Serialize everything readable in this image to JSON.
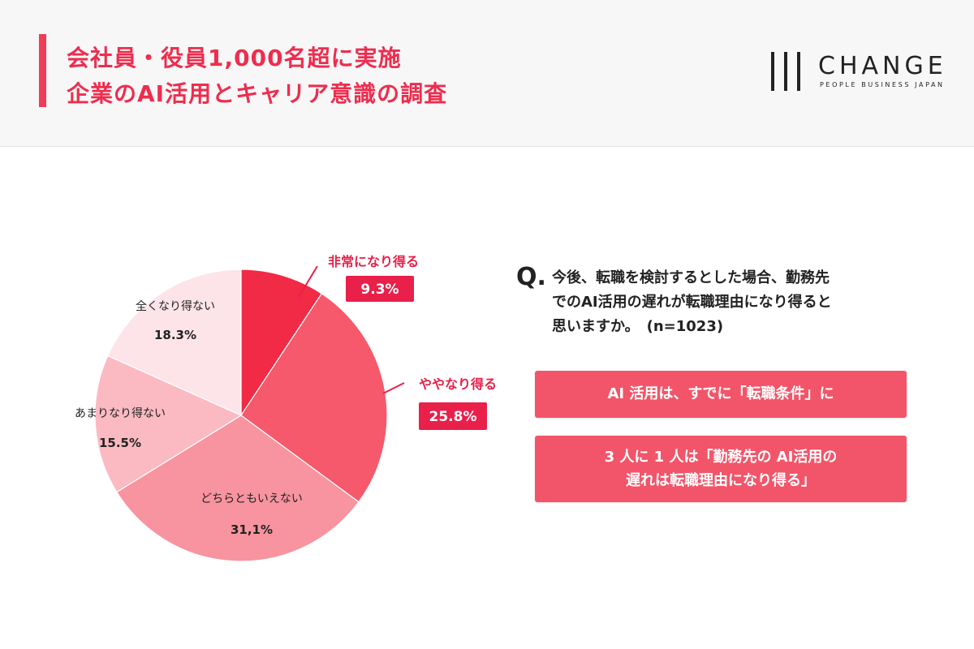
{
  "header": {
    "title_line1": "会社員・役員1,000名超に実施",
    "title_line2": "企業のAI活用とキャリア意識の調査",
    "accent_color": "#f03c57",
    "logo": {
      "name": "CHANGE",
      "tagline": "PEOPLE BUSINESS JAPAN"
    }
  },
  "question": {
    "mark": "Q.",
    "lines": [
      "今後、転職を検討するとした場合、勤務先",
      "でのAI活用の遅れが転職理由になり得ると",
      "思いますか。　(n=1023)"
    ]
  },
  "callouts": [
    {
      "lines": [
        "AI 活用は、すでに「転職条件」に"
      ]
    },
    {
      "lines": [
        "3 人に 1 人は「勤務先の AI活用の",
        "遅れは転職理由になり得る」"
      ]
    }
  ],
  "chart_data": {
    "type": "pie",
    "start_angle_deg": 0,
    "direction": "clockwise",
    "slices": [
      {
        "label": "非常になり得る",
        "value": 9.3,
        "value_text": "9.3%",
        "color": "#f12a45",
        "label_style": "external"
      },
      {
        "label": "ややなり得る",
        "value": 25.8,
        "value_text": "25.8%",
        "color": "#f5596b",
        "label_style": "external"
      },
      {
        "label": "どちらともいえない",
        "value": 31.1,
        "value_text": "31,1%",
        "color": "#f8949f",
        "label_style": "internal"
      },
      {
        "label": "あまりなり得ない",
        "value": 15.5,
        "value_text": "15.5%",
        "color": "#fbbac2",
        "label_style": "internal"
      },
      {
        "label": "全くなり得ない",
        "value": 18.3,
        "value_text": "18.3%",
        "color": "#fde4e8",
        "label_style": "internal"
      }
    ],
    "external_label_color": "#e8204a"
  }
}
